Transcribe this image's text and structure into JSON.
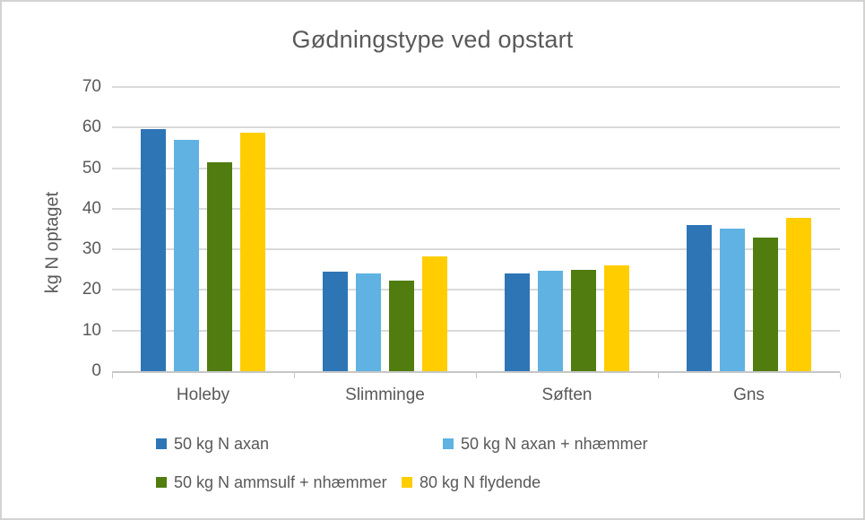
{
  "chart_data": {
    "type": "bar",
    "title": "Gødningstype ved opstart",
    "ylabel": "kg N optaget",
    "xlabel": "",
    "categories": [
      "Holeby",
      "Slimminge",
      "Søften",
      "Gns"
    ],
    "series": [
      {
        "name": "50 kg N axan",
        "color": "#2E75B6",
        "values": [
          59.7,
          24.5,
          24.0,
          36.0
        ]
      },
      {
        "name": "50 kg N axan + nhæmmer",
        "color": "#5FB2E2",
        "values": [
          56.9,
          24.0,
          24.8,
          35.2
        ]
      },
      {
        "name": "50 kg N ammsulf + nhæmmer",
        "color": "#507C10",
        "values": [
          51.5,
          22.3,
          24.9,
          32.9
        ]
      },
      {
        "name": "80 kg N flydende",
        "color": "#FFCD00",
        "values": [
          58.8,
          28.2,
          26.0,
          37.7
        ]
      }
    ],
    "ylim": [
      0,
      70
    ],
    "yticks": [
      0,
      10,
      20,
      30,
      40,
      50,
      60,
      70
    ],
    "grid": true,
    "legend_position": "bottom"
  }
}
